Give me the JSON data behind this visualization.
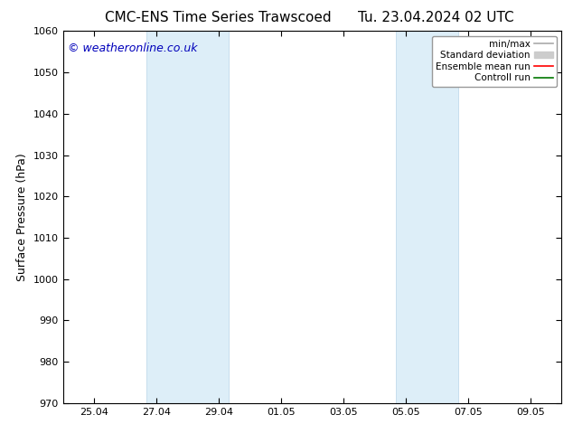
{
  "title_left": "CMC-ENS Time Series Trawscoed",
  "title_right": "Tu. 23.04.2024 02 UTC",
  "ylabel": "Surface Pressure (hPa)",
  "ylim": [
    970,
    1060
  ],
  "yticks": [
    970,
    980,
    990,
    1000,
    1010,
    1020,
    1030,
    1040,
    1050,
    1060
  ],
  "xtick_labels": [
    "25.04",
    "27.04",
    "29.04",
    "01.05",
    "03.05",
    "05.05",
    "07.05",
    "09.05"
  ],
  "xtick_positions": [
    1,
    3,
    5,
    7,
    9,
    11,
    13,
    15
  ],
  "x_min": 0,
  "x_max": 16,
  "shaded_bands": [
    {
      "x_start": 2.67,
      "x_end": 5.33
    },
    {
      "x_start": 10.67,
      "x_end": 12.67
    }
  ],
  "shaded_color": "#ddeef8",
  "shaded_edge_color": "#b8d4e8",
  "background_color": "#ffffff",
  "watermark_text": "© weatheronline.co.uk",
  "watermark_color": "#0000bb",
  "legend_items": [
    {
      "label": "min/max",
      "color": "#aaaaaa",
      "lw": 1.2,
      "ls": "-"
    },
    {
      "label": "Standard deviation",
      "color": "#cccccc",
      "lw": 5,
      "ls": "-"
    },
    {
      "label": "Ensemble mean run",
      "color": "#ff0000",
      "lw": 1.2,
      "ls": "-"
    },
    {
      "label": "Controll run",
      "color": "#007700",
      "lw": 1.2,
      "ls": "-"
    }
  ],
  "title_fontsize": 11,
  "axis_label_fontsize": 9,
  "tick_fontsize": 8,
  "legend_fontsize": 7.5,
  "watermark_fontsize": 9
}
